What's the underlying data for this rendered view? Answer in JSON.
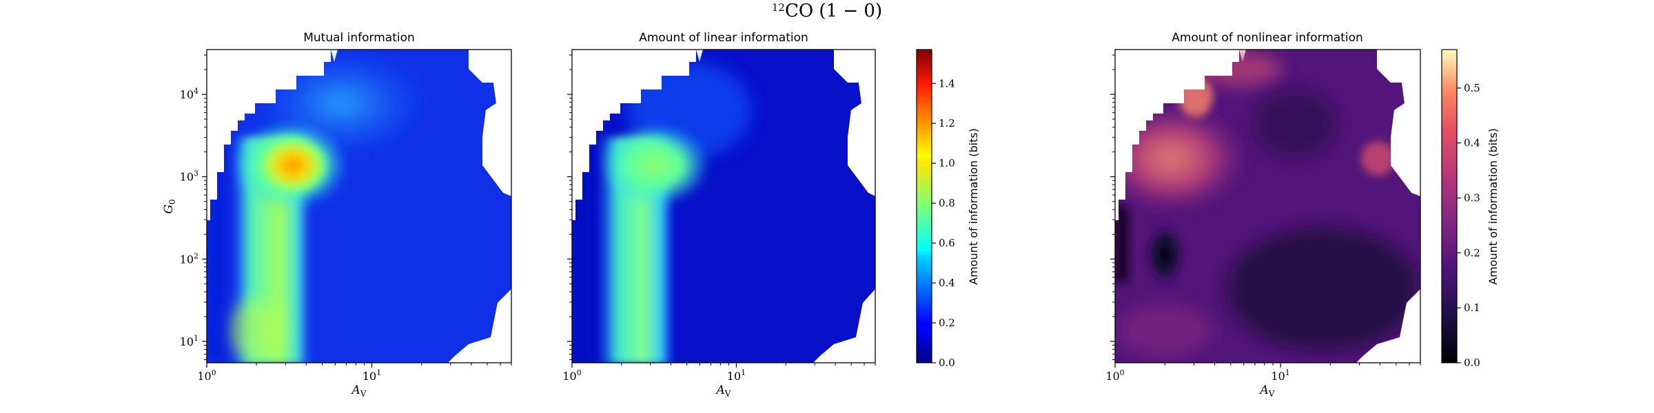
{
  "figure": {
    "title_prefix": "12",
    "title_main": "CO (1 − 0)"
  },
  "chart_data": [
    {
      "type": "heatmap",
      "title": "Mutual information",
      "xlabel": "A",
      "xlabel_sub": "V",
      "ylabel": "G",
      "ylabel_sub": "0",
      "x_scale": "log",
      "y_scale": "log",
      "xlim": [
        1,
        70
      ],
      "ylim": [
        5.5,
        35000
      ],
      "x_ticks": [
        {
          "value": 1,
          "base": "10",
          "exp": "0"
        },
        {
          "value": 10,
          "base": "10",
          "exp": "1"
        }
      ],
      "y_ticks": [
        {
          "value": 10,
          "base": "10",
          "exp": "1"
        },
        {
          "value": 100,
          "base": "10",
          "exp": "2"
        },
        {
          "value": 1000,
          "base": "10",
          "exp": "3"
        },
        {
          "value": 10000,
          "base": "10",
          "exp": "4"
        }
      ],
      "colormap": "jet",
      "value_range": [
        0,
        1.57
      ],
      "features": [
        {
          "description": "hotspot",
          "A_V_range": [
            2,
            5
          ],
          "G0_range": [
            500,
            3000
          ],
          "peak_value": 1.1
        },
        {
          "description": "ridge",
          "A_V_range": [
            1.5,
            3
          ],
          "G0_range": [
            6,
            2000
          ],
          "value": 0.65
        },
        {
          "description": "background",
          "value": 0.15
        }
      ]
    },
    {
      "type": "heatmap",
      "title": "Amount of linear information",
      "xlabel": "A",
      "xlabel_sub": "V",
      "x_scale": "log",
      "y_scale": "log",
      "xlim": [
        1,
        70
      ],
      "ylim": [
        5.5,
        35000
      ],
      "x_ticks": [
        {
          "value": 1,
          "base": "10",
          "exp": "0"
        },
        {
          "value": 10,
          "base": "10",
          "exp": "1"
        }
      ],
      "colormap": "jet",
      "value_range": [
        0,
        1.57
      ],
      "colorbar": {
        "label": "Amount of information (bits)",
        "ticks": [
          "0.0",
          "0.2",
          "0.4",
          "0.6",
          "0.8",
          "1.0",
          "1.2",
          "1.4"
        ],
        "tick_values": [
          0,
          0.2,
          0.4,
          0.6,
          0.8,
          1.0,
          1.2,
          1.4
        ]
      },
      "features": [
        {
          "description": "hotspot",
          "A_V_range": [
            2,
            5
          ],
          "G0_range": [
            500,
            3000
          ],
          "peak_value": 0.65
        },
        {
          "description": "ridge",
          "A_V_range": [
            1.5,
            3
          ],
          "G0_range": [
            6,
            2000
          ],
          "value": 0.6
        },
        {
          "description": "background",
          "value": 0.06
        }
      ]
    },
    {
      "type": "heatmap",
      "title": "Amount of nonlinear information",
      "xlabel": "A",
      "xlabel_sub": "V",
      "x_scale": "log",
      "y_scale": "log",
      "xlim": [
        1,
        70
      ],
      "ylim": [
        5.5,
        35000
      ],
      "x_ticks": [
        {
          "value": 1,
          "base": "10",
          "exp": "0"
        },
        {
          "value": 10,
          "base": "10",
          "exp": "1"
        }
      ],
      "colormap": "magma",
      "value_range": [
        0,
        0.57
      ],
      "colorbar": {
        "label": "Amount of information (bits)",
        "ticks": [
          "0.0",
          "0.1",
          "0.2",
          "0.3",
          "0.4",
          "0.5"
        ],
        "tick_values": [
          0,
          0.1,
          0.2,
          0.3,
          0.4,
          0.5
        ]
      },
      "features": [
        {
          "description": "bright region",
          "A_V_range": [
            2,
            6
          ],
          "G0_range": [
            300,
            5000
          ],
          "value": 0.4
        },
        {
          "description": "bright spot",
          "A_V_range": [
            2.5,
            3.5
          ],
          "G0_range": [
            5000,
            10000
          ],
          "value": 0.5
        },
        {
          "description": "dark patch",
          "A_V_range": [
            1.5,
            2.5
          ],
          "G0_range": [
            30,
            150
          ],
          "value": 0.03
        },
        {
          "description": "dark region",
          "A_V_range": [
            10,
            60
          ],
          "G0_range": [
            6,
            100
          ],
          "value": 0.05
        }
      ]
    }
  ]
}
